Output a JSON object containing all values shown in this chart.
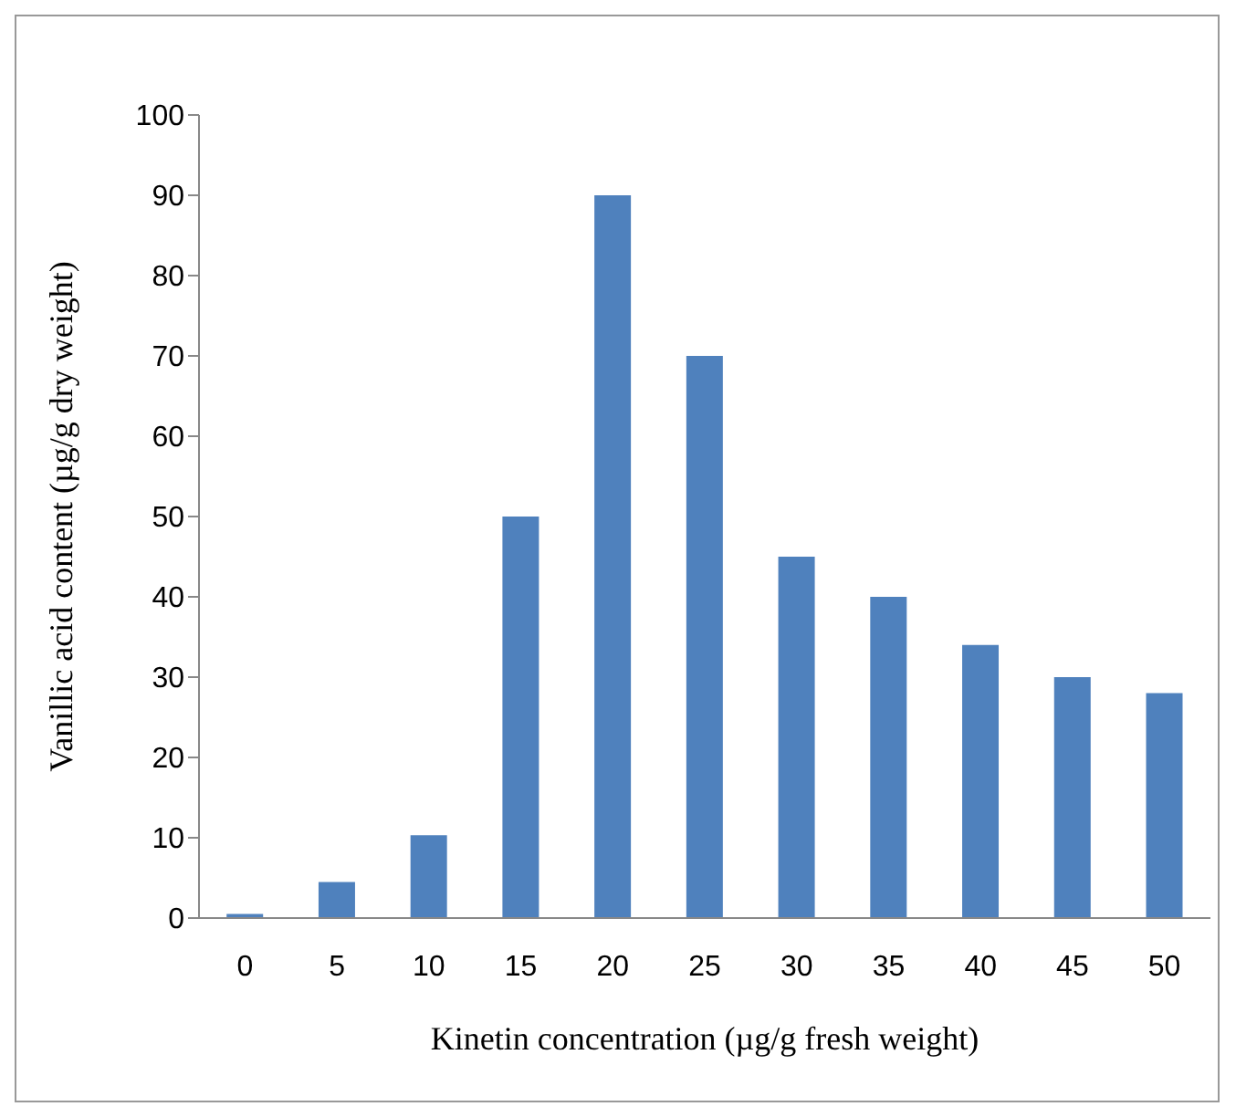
{
  "chart_data": {
    "type": "bar",
    "xlabel": "Kinetin concentration (µg/g fresh weight)",
    "ylabel": "Vanillic acid content (µg/g dry weight)",
    "categories": [
      "0",
      "5",
      "10",
      "15",
      "20",
      "25",
      "30",
      "35",
      "40",
      "45",
      "50"
    ],
    "values": [
      0.5,
      4.5,
      10.3,
      50,
      90,
      70,
      45,
      40,
      34,
      30,
      28
    ],
    "color": "#4f81bd",
    "ylim": [
      0,
      100
    ],
    "yticks": [
      0,
      10,
      20,
      30,
      40,
      50,
      60,
      70,
      80,
      90,
      100
    ],
    "grid": false,
    "legend": false
  }
}
